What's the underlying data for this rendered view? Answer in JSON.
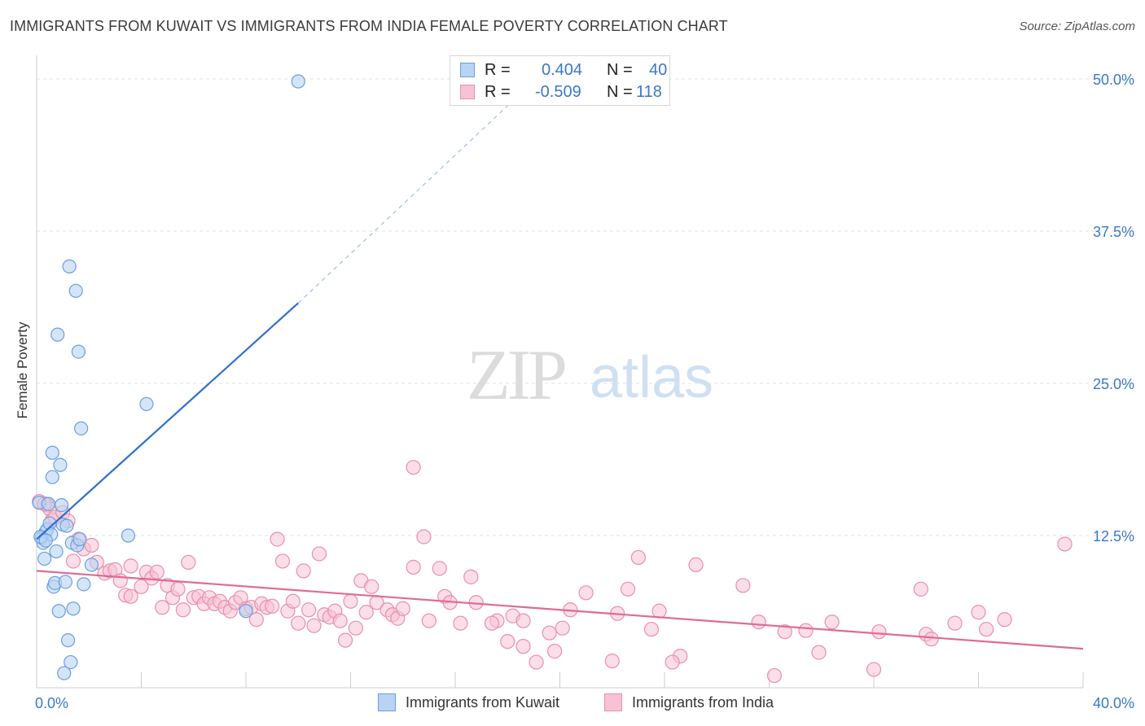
{
  "title": "IMMIGRANTS FROM KUWAIT VS IMMIGRANTS FROM INDIA FEMALE POVERTY CORRELATION CHART",
  "source": "Source: ZipAtlas.com",
  "watermark": {
    "zip": "ZIP",
    "atlas": "atlas"
  },
  "colors": {
    "kuwait_fill": "#b9d3f3",
    "kuwait_stroke": "#6a9ee0",
    "kuwait_line": "#2f6fd0",
    "india_fill": "#f7c2d3",
    "india_stroke": "#e88fae",
    "india_line": "#e06a95",
    "axis_label": "#3a78c9",
    "grid": "#e0e0e0"
  },
  "stats": {
    "kuwait": {
      "r_label": "R =",
      "r_value": "0.404",
      "n_label": "N =",
      "n_value": "40"
    },
    "india": {
      "r_label": "R =",
      "r_value": "-0.509",
      "n_label": "N =",
      "n_value": "118"
    }
  },
  "legend": {
    "kuwait": "Immigrants from Kuwait",
    "india": "Immigrants from India"
  },
  "chart_data": {
    "type": "scatter",
    "title": "IMMIGRANTS FROM KUWAIT VS IMMIGRANTS FROM INDIA FEMALE POVERTY CORRELATION CHART",
    "xlabel": "",
    "ylabel": "Female Poverty",
    "xlim": [
      0,
      40
    ],
    "ylim": [
      0,
      52
    ],
    "x_tick_labels": [
      "0.0%",
      "40.0%"
    ],
    "y_ticks": [
      12.5,
      25.0,
      37.5,
      50.0
    ],
    "y_tick_labels": [
      "12.5%",
      "25.0%",
      "37.5%",
      "50.0%"
    ],
    "grid": true,
    "series": [
      {
        "name": "Immigrants from Kuwait",
        "color": "#6a9ee0",
        "points": [
          [
            0.1,
            15.2
          ],
          [
            0.2,
            12.3
          ],
          [
            0.25,
            11.9
          ],
          [
            0.3,
            10.6
          ],
          [
            0.35,
            12.8
          ],
          [
            0.4,
            13.0
          ],
          [
            0.45,
            15.1
          ],
          [
            0.5,
            13.5
          ],
          [
            0.55,
            12.6
          ],
          [
            0.6,
            19.3
          ],
          [
            0.6,
            17.3
          ],
          [
            0.65,
            8.3
          ],
          [
            0.7,
            8.6
          ],
          [
            0.75,
            11.2
          ],
          [
            0.8,
            29.0
          ],
          [
            0.85,
            6.3
          ],
          [
            0.9,
            18.3
          ],
          [
            0.95,
            15.0
          ],
          [
            1.0,
            13.4
          ],
          [
            1.05,
            1.2
          ],
          [
            1.1,
            8.7
          ],
          [
            1.15,
            13.3
          ],
          [
            1.2,
            3.9
          ],
          [
            1.25,
            34.6
          ],
          [
            1.3,
            2.1
          ],
          [
            1.35,
            11.9
          ],
          [
            1.4,
            6.5
          ],
          [
            1.5,
            32.6
          ],
          [
            1.55,
            11.7
          ],
          [
            1.6,
            27.6
          ],
          [
            1.65,
            12.2
          ],
          [
            1.7,
            21.3
          ],
          [
            1.8,
            8.5
          ],
          [
            2.1,
            10.1
          ],
          [
            3.5,
            12.5
          ],
          [
            4.2,
            23.3
          ],
          [
            8.0,
            6.3
          ],
          [
            10.0,
            49.8
          ],
          [
            0.15,
            12.4
          ],
          [
            0.35,
            12.1
          ]
        ],
        "trendline": {
          "x": [
            0.0,
            10.0
          ],
          "y": [
            12.2,
            31.6
          ],
          "dashed_extension_to": [
            18.0,
            47.8
          ]
        }
      },
      {
        "name": "Immigrants from India",
        "color": "#e88fae",
        "points": [
          [
            0.1,
            15.3
          ],
          [
            0.4,
            15.0
          ],
          [
            0.5,
            14.7
          ],
          [
            0.6,
            13.8
          ],
          [
            0.7,
            14.0
          ],
          [
            1.0,
            14.4
          ],
          [
            1.2,
            13.7
          ],
          [
            1.4,
            10.4
          ],
          [
            1.6,
            12.2
          ],
          [
            1.8,
            11.4
          ],
          [
            2.1,
            11.7
          ],
          [
            2.3,
            10.3
          ],
          [
            2.6,
            9.4
          ],
          [
            2.8,
            9.6
          ],
          [
            3.0,
            9.7
          ],
          [
            3.2,
            8.8
          ],
          [
            3.4,
            7.6
          ],
          [
            3.6,
            7.5
          ],
          [
            3.6,
            10.0
          ],
          [
            4.0,
            8.3
          ],
          [
            4.2,
            9.5
          ],
          [
            4.4,
            9.0
          ],
          [
            4.6,
            9.5
          ],
          [
            4.8,
            6.6
          ],
          [
            5.0,
            8.4
          ],
          [
            5.2,
            7.4
          ],
          [
            5.4,
            8.1
          ],
          [
            5.6,
            6.4
          ],
          [
            5.8,
            10.3
          ],
          [
            6.0,
            7.4
          ],
          [
            6.2,
            7.5
          ],
          [
            6.4,
            6.9
          ],
          [
            6.6,
            7.4
          ],
          [
            6.8,
            6.9
          ],
          [
            7.0,
            7.1
          ],
          [
            7.2,
            6.6
          ],
          [
            7.4,
            6.3
          ],
          [
            7.6,
            7.0
          ],
          [
            7.8,
            7.4
          ],
          [
            8.0,
            6.5
          ],
          [
            8.2,
            6.6
          ],
          [
            8.4,
            5.6
          ],
          [
            8.6,
            6.9
          ],
          [
            8.8,
            6.6
          ],
          [
            9.0,
            6.7
          ],
          [
            9.2,
            12.2
          ],
          [
            9.4,
            10.4
          ],
          [
            9.6,
            6.3
          ],
          [
            9.8,
            7.1
          ],
          [
            10.0,
            5.3
          ],
          [
            10.2,
            9.6
          ],
          [
            10.4,
            6.4
          ],
          [
            10.6,
            5.1
          ],
          [
            10.8,
            11.0
          ],
          [
            11.0,
            6.0
          ],
          [
            11.2,
            5.8
          ],
          [
            11.4,
            6.3
          ],
          [
            11.6,
            5.5
          ],
          [
            11.8,
            3.9
          ],
          [
            12.0,
            7.1
          ],
          [
            12.2,
            4.9
          ],
          [
            12.4,
            8.8
          ],
          [
            12.6,
            6.2
          ],
          [
            12.8,
            8.3
          ],
          [
            13.0,
            7.0
          ],
          [
            13.4,
            6.4
          ],
          [
            13.6,
            6.0
          ],
          [
            13.8,
            5.7
          ],
          [
            14.0,
            6.5
          ],
          [
            14.4,
            9.9
          ],
          [
            14.8,
            12.4
          ],
          [
            14.4,
            18.1
          ],
          [
            15.4,
            9.8
          ],
          [
            15.0,
            5.5
          ],
          [
            15.6,
            7.5
          ],
          [
            15.8,
            7.0
          ],
          [
            16.2,
            5.3
          ],
          [
            16.6,
            9.1
          ],
          [
            16.8,
            7.0
          ],
          [
            17.6,
            5.5
          ],
          [
            17.4,
            5.3
          ],
          [
            18.0,
            3.8
          ],
          [
            18.2,
            5.9
          ],
          [
            18.6,
            5.5
          ],
          [
            18.6,
            3.4
          ],
          [
            19.1,
            2.1
          ],
          [
            19.6,
            4.5
          ],
          [
            19.8,
            3.0
          ],
          [
            20.1,
            4.9
          ],
          [
            20.4,
            6.4
          ],
          [
            21.0,
            7.8
          ],
          [
            22.0,
            2.2
          ],
          [
            22.2,
            6.1
          ],
          [
            22.6,
            8.1
          ],
          [
            23.0,
            10.7
          ],
          [
            23.5,
            4.8
          ],
          [
            23.8,
            6.3
          ],
          [
            24.6,
            2.6
          ],
          [
            24.3,
            2.1
          ],
          [
            25.2,
            10.1
          ],
          [
            27.0,
            8.4
          ],
          [
            27.6,
            5.4
          ],
          [
            28.6,
            4.6
          ],
          [
            28.2,
            1.0
          ],
          [
            29.4,
            4.7
          ],
          [
            29.9,
            2.9
          ],
          [
            30.4,
            5.4
          ],
          [
            32.0,
            1.5
          ],
          [
            32.2,
            4.6
          ],
          [
            33.8,
            8.1
          ],
          [
            34.0,
            4.4
          ],
          [
            34.2,
            4.0
          ],
          [
            35.1,
            5.3
          ],
          [
            36.0,
            6.2
          ],
          [
            36.3,
            4.8
          ],
          [
            37.0,
            5.6
          ],
          [
            39.3,
            11.8
          ],
          [
            0.3,
            15.1
          ]
        ],
        "trendline": {
          "x": [
            0.0,
            40.0
          ],
          "y": [
            9.6,
            3.2
          ]
        }
      }
    ]
  }
}
